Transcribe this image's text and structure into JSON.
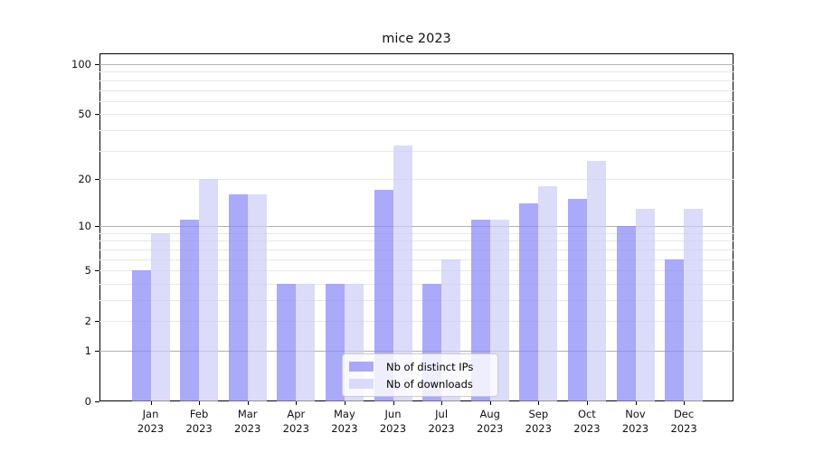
{
  "figure": {
    "title": "mice 2023"
  },
  "chart_data": {
    "type": "bar",
    "title": "mice 2023",
    "categories": [
      "Jan 2023",
      "Feb 2023",
      "Mar 2023",
      "Apr 2023",
      "May 2023",
      "Jun 2023",
      "Jul 2023",
      "Aug 2023",
      "Sep 2023",
      "Oct 2023",
      "Nov 2023",
      "Dec 2023"
    ],
    "months": [
      "Jan",
      "Feb",
      "Mar",
      "Apr",
      "May",
      "Jun",
      "Jul",
      "Aug",
      "Sep",
      "Oct",
      "Nov",
      "Dec"
    ],
    "year": "2023",
    "series": [
      {
        "name": "Nb of distinct IPs",
        "key": "distinct-ips",
        "values": [
          5,
          11,
          16,
          4,
          4,
          17,
          4,
          11,
          14,
          15,
          10,
          6
        ],
        "color": "rgba(137,137,248,0.72)",
        "color_hex_on_white": "#aaaaf9"
      },
      {
        "name": "Nb of downloads",
        "key": "downloads",
        "values": [
          9,
          20,
          16,
          4,
          4,
          32,
          6,
          11,
          18,
          26,
          13,
          13
        ],
        "color": "rgba(204,204,248,0.70)",
        "color_hex_on_white": "#dbdbfa"
      }
    ],
    "yscale": "log1p",
    "yticks": [
      0,
      1,
      2,
      5,
      10,
      20,
      50,
      100
    ],
    "ylim": [
      0,
      116
    ],
    "grid": true,
    "grid_major_at": [
      1,
      10,
      100
    ],
    "grid_minor_at": [
      2,
      3,
      4,
      5,
      6,
      7,
      8,
      9,
      20,
      30,
      40,
      50,
      60,
      70,
      80,
      90
    ],
    "legend_position": "lower center",
    "axis_color": "#000000",
    "grid_major_color": "#b2b2b2",
    "grid_minor_color": "#e8e8e8"
  }
}
